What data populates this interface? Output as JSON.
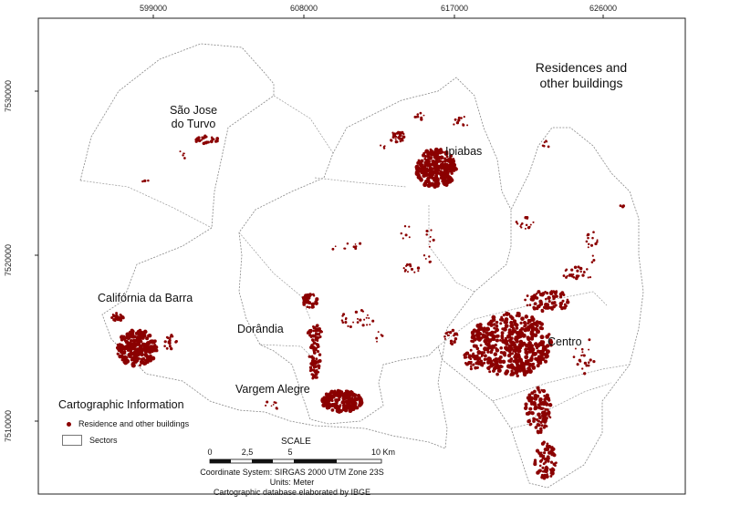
{
  "title": {
    "line1": "Residences and",
    "line2": "other buildings"
  },
  "coordinates": {
    "top": [
      "599000",
      "608000",
      "617000",
      "626000"
    ],
    "left": [
      "7530000",
      "7520000",
      "7510000"
    ]
  },
  "places": {
    "sao_jose": {
      "line1": "São Jose",
      "line2": "do Turvo"
    },
    "ipiabas": "Ipiabas",
    "california": "Califórnia da Barra",
    "dorandia": "Dorândia",
    "vargem_alegre": "Vargem Alegre",
    "centro": "Centro"
  },
  "legend": {
    "title": "Cartographic Information",
    "residence": "Residence and other buildings",
    "sectors": "Sectors"
  },
  "scale": {
    "title": "SCALE",
    "ticks": [
      "0",
      "2,5",
      "5",
      "10 Km"
    ]
  },
  "footnotes": [
    "Coordinate System: SIRGAS 2000 UTM Zone 23S",
    "Units: Meter",
    "Cartographic database elaborated by IBGE"
  ],
  "colors": {
    "building": "#8b0000",
    "boundary": "#888888",
    "frame": "#222222"
  }
}
